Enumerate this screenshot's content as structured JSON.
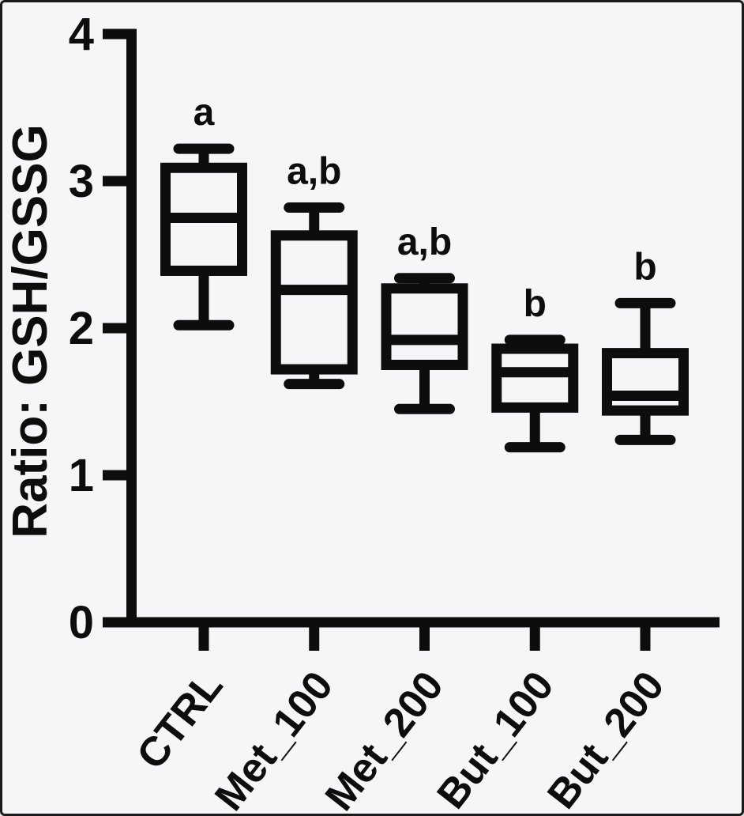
{
  "window": {
    "background": "#f5f6f8",
    "frame_color": "#1a1a1a"
  },
  "chart_data": {
    "type": "box",
    "title": "",
    "xlabel": "",
    "ylabel": "Ratio: GSH/GSSG",
    "ylim": [
      0,
      4
    ],
    "yticks": [
      "0",
      "1",
      "2",
      "3",
      "4"
    ],
    "grid": false,
    "legend": "none",
    "line_color": "#0d0d0d",
    "box_fill": "#f5f6f8",
    "categories": [
      "CTRL",
      "Met_100",
      "Met_200",
      "But_100",
      "But_200"
    ],
    "series": [
      {
        "name": "CTRL",
        "whisker_low": 2.02,
        "q1": 2.39,
        "median": 2.75,
        "q3": 3.09,
        "whisker_high": 3.22,
        "sig_label": "a"
      },
      {
        "name": "Met_100",
        "whisker_low": 1.62,
        "q1": 1.72,
        "median": 2.26,
        "q3": 2.63,
        "whisker_high": 2.82,
        "sig_label": "a,b"
      },
      {
        "name": "Met_200",
        "whisker_low": 1.45,
        "q1": 1.75,
        "median": 1.92,
        "q3": 2.27,
        "whisker_high": 2.34,
        "sig_label": "a,b"
      },
      {
        "name": "But_100",
        "whisker_low": 1.19,
        "q1": 1.46,
        "median": 1.7,
        "q3": 1.86,
        "whisker_high": 1.92,
        "sig_label": "b"
      },
      {
        "name": "But_200",
        "whisker_low": 1.24,
        "q1": 1.44,
        "median": 1.54,
        "q3": 1.83,
        "whisker_high": 2.17,
        "sig_label": "b"
      }
    ]
  }
}
